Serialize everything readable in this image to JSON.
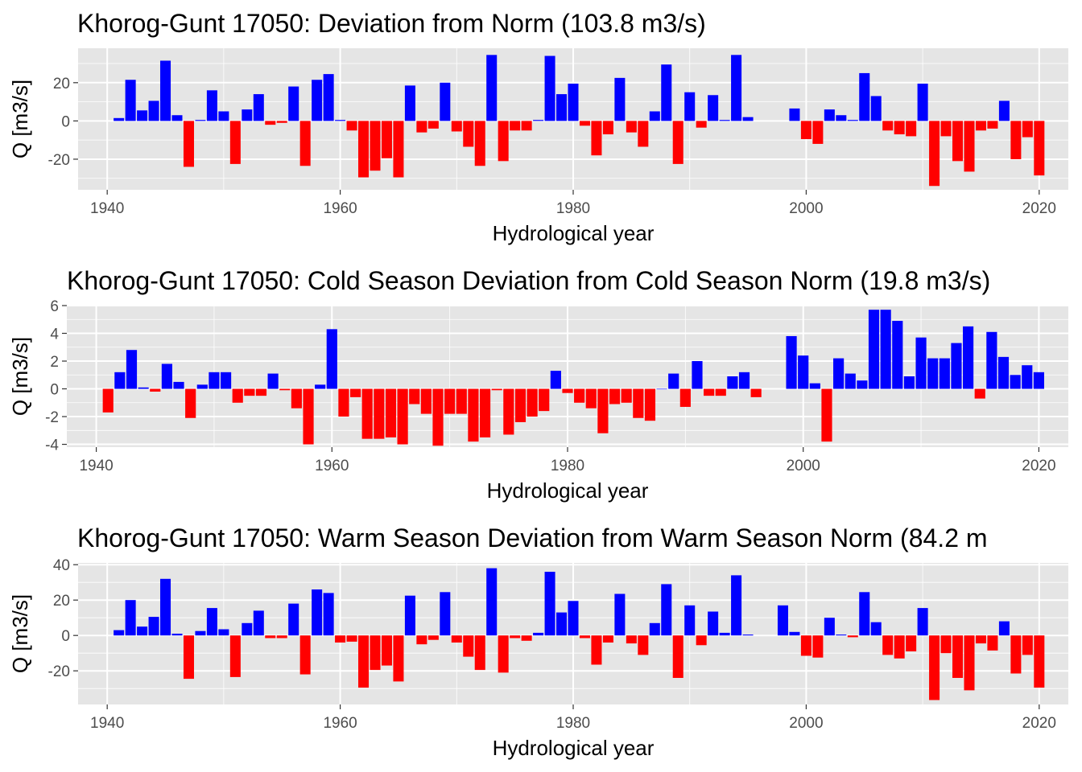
{
  "chart_data": [
    {
      "type": "bar",
      "title": "Khorog-Gunt 17050: Deviation from Norm (103.8 m3/s)",
      "xlabel": "Hydrological year",
      "ylabel": "Q [m3/s]",
      "x_ticks": [
        "1940",
        "1960",
        "1980",
        "2000",
        "2020"
      ],
      "y_ticks": [
        "-20",
        "0",
        "20"
      ],
      "xlim": [
        1937.5,
        2022.5
      ],
      "ylim": [
        -36,
        38
      ],
      "grid": true,
      "colors": {
        "positive": "#0000FF",
        "negative": "#FF0000",
        "panel": "#E5E5E5",
        "grid": "#FFFFFF"
      },
      "x": [
        1941,
        1942,
        1943,
        1944,
        1945,
        1946,
        1947,
        1948,
        1949,
        1950,
        1951,
        1952,
        1953,
        1954,
        1955,
        1956,
        1957,
        1958,
        1959,
        1960,
        1961,
        1962,
        1963,
        1964,
        1965,
        1966,
        1967,
        1968,
        1969,
        1970,
        1971,
        1972,
        1973,
        1974,
        1975,
        1976,
        1977,
        1978,
        1979,
        1980,
        1981,
        1982,
        1983,
        1984,
        1985,
        1986,
        1987,
        1988,
        1989,
        1990,
        1991,
        1992,
        1993,
        1994,
        1995,
        1999,
        2000,
        2001,
        2002,
        2003,
        2004,
        2005,
        2006,
        2007,
        2008,
        2009,
        2010,
        2011,
        2012,
        2013,
        2014,
        2015,
        2016,
        2017,
        2018,
        2019,
        2020
      ],
      "values": [
        1.5,
        21.5,
        5.5,
        10.5,
        31.5,
        3,
        -24,
        0.5,
        16,
        5,
        -22.5,
        6,
        14,
        -2,
        -1,
        18,
        -23.5,
        21.5,
        24.5,
        0.5,
        -5,
        -29.5,
        -26,
        -19.5,
        -29.5,
        18.5,
        -6,
        -4,
        20,
        -5.5,
        -13.5,
        -23.5,
        34.5,
        -21,
        -5,
        -5,
        0.5,
        34,
        14,
        19.5,
        -2.5,
        -18,
        -7,
        22.5,
        -6,
        -13.5,
        5,
        29.5,
        -22.5,
        15,
        -3.5,
        13.5,
        0.5,
        34.5,
        2,
        6.5,
        -9.5,
        -12,
        6,
        3,
        0.5,
        25,
        13,
        -5,
        -7,
        -8,
        19.5,
        -34,
        -8,
        -21,
        -26.5,
        -5,
        -4,
        10.5,
        -20,
        -8.5,
        -28.5
      ]
    },
    {
      "type": "bar",
      "title": "Khorog-Gunt 17050: Cold Season Deviation from Cold Season Norm (19.8 m3/s)",
      "xlabel": "Hydrological year",
      "ylabel": "Q [m3/s]",
      "x_ticks": [
        "1940",
        "1960",
        "1980",
        "2000",
        "2020"
      ],
      "y_ticks": [
        "-4",
        "-2",
        "0",
        "2",
        "4",
        "6"
      ],
      "xlim": [
        1937.5,
        2022.5
      ],
      "ylim": [
        -4.2,
        6
      ],
      "grid": true,
      "colors": {
        "positive": "#0000FF",
        "negative": "#FF0000",
        "panel": "#E5E5E5",
        "grid": "#FFFFFF"
      },
      "x": [
        1941,
        1942,
        1943,
        1944,
        1945,
        1946,
        1947,
        1948,
        1949,
        1950,
        1951,
        1952,
        1953,
        1954,
        1955,
        1956,
        1957,
        1958,
        1959,
        1960,
        1961,
        1962,
        1963,
        1964,
        1965,
        1966,
        1967,
        1968,
        1969,
        1970,
        1971,
        1972,
        1973,
        1974,
        1975,
        1976,
        1977,
        1978,
        1979,
        1980,
        1981,
        1982,
        1983,
        1984,
        1985,
        1986,
        1987,
        1988,
        1989,
        1990,
        1991,
        1992,
        1993,
        1994,
        1995,
        1996,
        1999,
        2000,
        2001,
        2002,
        2003,
        2004,
        2005,
        2006,
        2007,
        2008,
        2009,
        2010,
        2011,
        2012,
        2013,
        2014,
        2015,
        2016,
        2017,
        2018,
        2019,
        2020
      ],
      "values": [
        -1.7,
        1.2,
        2.8,
        0.1,
        -0.2,
        1.8,
        0.5,
        -2.1,
        0.3,
        1.2,
        1.2,
        -1,
        -0.5,
        -0.5,
        1.1,
        -0.1,
        -1.4,
        -4,
        0.3,
        4.3,
        -2,
        -0.6,
        -3.6,
        -3.6,
        -3.5,
        -4,
        -1.1,
        -1.8,
        -4.1,
        -1.8,
        -1.8,
        -3.8,
        -3.5,
        -0.1,
        -3.3,
        -2.4,
        -2,
        -1.6,
        1.3,
        -0.3,
        -1,
        -1.4,
        -3.2,
        -1.1,
        -1,
        -2.1,
        -2.3,
        0,
        1.1,
        -1.3,
        2,
        -0.5,
        -0.5,
        0.9,
        1.2,
        -0.6,
        3.8,
        2.4,
        0.4,
        -3.8,
        2.2,
        1.1,
        0.6,
        5.7,
        5.7,
        4.9,
        0.9,
        3.7,
        2.2,
        2.2,
        3.3,
        4.5,
        -0.7,
        4.1,
        2.3,
        1,
        1.7,
        1.2
      ]
    },
    {
      "type": "bar",
      "title": "Khorog-Gunt 17050: Warm Season Deviation from Warm Season Norm (84.2 m",
      "xlabel": "Hydrological year",
      "ylabel": "Q [m3/s]",
      "x_ticks": [
        "1940",
        "1960",
        "1980",
        "2000",
        "2020"
      ],
      "y_ticks": [
        "-20",
        "0",
        "20",
        "40"
      ],
      "xlim": [
        1937.5,
        2022.5
      ],
      "ylim": [
        -39,
        41
      ],
      "grid": true,
      "colors": {
        "positive": "#0000FF",
        "negative": "#FF0000",
        "panel": "#E5E5E5",
        "grid": "#FFFFFF"
      },
      "x": [
        1941,
        1942,
        1943,
        1944,
        1945,
        1946,
        1947,
        1948,
        1949,
        1950,
        1951,
        1952,
        1953,
        1954,
        1955,
        1956,
        1957,
        1958,
        1959,
        1960,
        1961,
        1962,
        1963,
        1964,
        1965,
        1966,
        1967,
        1968,
        1969,
        1970,
        1971,
        1972,
        1973,
        1974,
        1975,
        1976,
        1977,
        1978,
        1979,
        1980,
        1981,
        1982,
        1983,
        1984,
        1985,
        1986,
        1987,
        1988,
        1989,
        1990,
        1991,
        1992,
        1993,
        1994,
        1995,
        1998,
        1999,
        2000,
        2001,
        2002,
        2003,
        2004,
        2005,
        2006,
        2007,
        2008,
        2009,
        2010,
        2011,
        2012,
        2013,
        2014,
        2015,
        2016,
        2017,
        2018,
        2019,
        2020
      ],
      "values": [
        3,
        20,
        5,
        10.5,
        32,
        1,
        -24.5,
        2.5,
        15.5,
        3.5,
        -23.5,
        7,
        14,
        -1.5,
        -1.5,
        18,
        -22,
        26,
        24,
        -4,
        -3.5,
        -29.5,
        -19.5,
        -17,
        -26,
        22.5,
        -5,
        -2.5,
        24.5,
        -4,
        -12,
        -19.5,
        38,
        -21,
        -1.5,
        -3,
        1.5,
        36,
        13,
        19.5,
        -1.5,
        -16.5,
        -4,
        23.5,
        -4.5,
        -11,
        7,
        29,
        -24,
        17,
        -5.5,
        13.5,
        1.5,
        34,
        0.5,
        17,
        2,
        -11.5,
        -12.5,
        10,
        0.5,
        -1,
        24.5,
        7.5,
        -11,
        -13,
        -9,
        15.5,
        -36.5,
        -10,
        -24,
        -31,
        -4.5,
        -8.5,
        8,
        -21.5,
        -11,
        -29.5
      ]
    }
  ]
}
